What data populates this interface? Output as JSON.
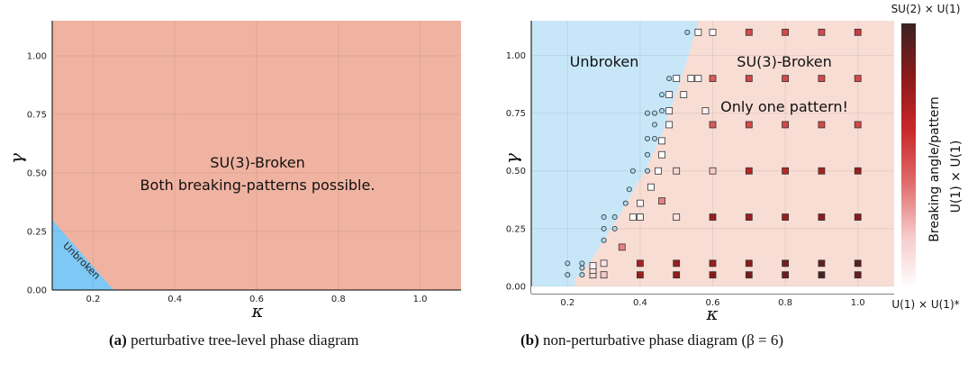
{
  "chart_data": [
    {
      "type": "area",
      "xlabel": "κ",
      "ylabel": "γ",
      "xlim": [
        0.1,
        1.1
      ],
      "ylim": [
        0.0,
        1.15
      ],
      "xticks": [
        "0.2",
        "0.4",
        "0.6",
        "0.8",
        "1.0"
      ],
      "yticks": [
        "0.00",
        "0.25",
        "0.50",
        "0.75",
        "1.00"
      ],
      "grid": true,
      "colors": {
        "broken": "#f0b3a1",
        "unbroken": "#7dc8f5"
      },
      "regions": [
        {
          "label": "Unbroken",
          "boundary_x": [
            0.1,
            0.25
          ],
          "boundary_y": [
            0.3,
            0.0
          ]
        },
        {
          "label": "SU(3)-Broken",
          "label2": "Both breaking-patterns possible."
        }
      ],
      "caption": {
        "letter": "(a)",
        "text": " perturbative tree-level phase diagram"
      }
    },
    {
      "type": "scatter",
      "xlabel": "κ",
      "ylabel": "γ",
      "xlim": [
        0.1,
        1.1
      ],
      "ylim": [
        0.0,
        1.15
      ],
      "xticks": [
        "0.2",
        "0.4",
        "0.6",
        "0.8",
        "1.0"
      ],
      "yticks": [
        "0.00",
        "0.25",
        "0.50",
        "0.75",
        "1.00"
      ],
      "grid": true,
      "colors": {
        "broken": "#f8ddd4",
        "unbroken": "#c7e7f9"
      },
      "boundary": {
        "x": [
          0.22,
          0.26,
          0.3,
          0.34,
          0.38,
          0.42,
          0.46,
          0.5,
          0.53,
          0.56
        ],
        "y": [
          0.03,
          0.1,
          0.2,
          0.3,
          0.41,
          0.52,
          0.66,
          0.84,
          0.98,
          1.15
        ]
      },
      "region_labels": {
        "left": "Unbroken",
        "right": "SU(3)-Broken",
        "note": "Only one pattern!"
      },
      "circles": [
        [
          0.2,
          0.05
        ],
        [
          0.2,
          0.1
        ],
        [
          0.24,
          0.05
        ],
        [
          0.24,
          0.08
        ],
        [
          0.24,
          0.1
        ],
        [
          0.3,
          0.2
        ],
        [
          0.3,
          0.25
        ],
        [
          0.3,
          0.3
        ],
        [
          0.33,
          0.25
        ],
        [
          0.33,
          0.3
        ],
        [
          0.36,
          0.36
        ],
        [
          0.37,
          0.42
        ],
        [
          0.38,
          0.5
        ],
        [
          0.42,
          0.5
        ],
        [
          0.42,
          0.57
        ],
        [
          0.42,
          0.64
        ],
        [
          0.44,
          0.64
        ],
        [
          0.44,
          0.7
        ],
        [
          0.42,
          0.75
        ],
        [
          0.44,
          0.75
        ],
        [
          0.46,
          0.76
        ],
        [
          0.46,
          0.83
        ],
        [
          0.48,
          0.9
        ],
        [
          0.53,
          1.1
        ]
      ],
      "squares": [
        [
          0.27,
          0.05,
          0.15
        ],
        [
          0.27,
          0.07,
          0.1
        ],
        [
          0.27,
          0.09,
          0.05
        ],
        [
          0.3,
          0.05,
          0.2
        ],
        [
          0.3,
          0.1,
          0.1
        ],
        [
          0.38,
          0.3,
          0.0
        ],
        [
          0.4,
          0.3,
          0.05
        ],
        [
          0.35,
          0.17,
          0.35
        ],
        [
          0.4,
          0.36,
          0.0
        ],
        [
          0.43,
          0.43,
          0.0
        ],
        [
          0.45,
          0.5,
          0.0
        ],
        [
          0.46,
          0.57,
          0.0
        ],
        [
          0.46,
          0.63,
          0.0
        ],
        [
          0.48,
          0.7,
          0.0
        ],
        [
          0.48,
          0.76,
          0.0
        ],
        [
          0.48,
          0.83,
          0.0
        ],
        [
          0.5,
          0.9,
          0.0
        ],
        [
          0.52,
          0.83,
          0.0
        ],
        [
          0.54,
          0.9,
          0.0
        ],
        [
          0.56,
          0.9,
          0.0
        ],
        [
          0.56,
          1.1,
          0.0
        ],
        [
          0.6,
          1.1,
          0.0
        ],
        [
          0.58,
          0.76,
          0.05
        ],
        [
          0.46,
          0.37,
          0.35
        ],
        [
          0.5,
          0.5,
          0.15
        ],
        [
          0.6,
          0.5,
          0.2
        ],
        [
          0.7,
          0.5,
          0.65
        ],
        [
          0.8,
          0.5,
          0.65
        ],
        [
          0.9,
          0.5,
          0.7
        ],
        [
          1.0,
          0.5,
          0.75
        ],
        [
          0.5,
          0.3,
          0.1
        ],
        [
          0.6,
          0.3,
          0.75
        ],
        [
          0.7,
          0.3,
          0.75
        ],
        [
          0.8,
          0.3,
          0.75
        ],
        [
          0.9,
          0.3,
          0.78
        ],
        [
          1.0,
          0.3,
          0.8
        ],
        [
          0.6,
          0.7,
          0.45
        ],
        [
          0.7,
          0.7,
          0.5
        ],
        [
          0.8,
          0.7,
          0.5
        ],
        [
          0.9,
          0.7,
          0.5
        ],
        [
          1.0,
          0.7,
          0.5
        ],
        [
          0.6,
          0.9,
          0.45
        ],
        [
          0.7,
          0.9,
          0.5
        ],
        [
          0.8,
          0.9,
          0.5
        ],
        [
          0.9,
          0.9,
          0.5
        ],
        [
          1.0,
          0.9,
          0.5
        ],
        [
          0.7,
          1.1,
          0.5
        ],
        [
          0.8,
          1.1,
          0.5
        ],
        [
          0.9,
          1.1,
          0.5
        ],
        [
          1.0,
          1.1,
          0.55
        ],
        [
          0.4,
          0.1,
          0.7
        ],
        [
          0.5,
          0.1,
          0.75
        ],
        [
          0.6,
          0.1,
          0.75
        ],
        [
          0.7,
          0.1,
          0.8
        ],
        [
          0.8,
          0.1,
          0.85
        ],
        [
          0.9,
          0.1,
          0.9
        ],
        [
          1.0,
          0.1,
          0.92
        ],
        [
          0.4,
          0.05,
          0.75
        ],
        [
          0.5,
          0.05,
          0.78
        ],
        [
          0.6,
          0.05,
          0.8
        ],
        [
          0.7,
          0.05,
          0.85
        ],
        [
          0.8,
          0.05,
          0.88
        ],
        [
          0.9,
          0.05,
          0.97
        ],
        [
          1.0,
          0.05,
          0.9
        ]
      ],
      "colorbar": {
        "label": "Breaking angle/pattern",
        "right_label": "U(1) × U(1)",
        "top_label": "SU(2) × U(1)",
        "bottom_label": "U(1) × U(1)*",
        "colors": [
          "#ffffff",
          "#f6c9c9",
          "#e06a6a",
          "#c8282a",
          "#8b1a1a",
          "#3a2323"
        ]
      },
      "caption": {
        "letter": "(b)",
        "text": " non-perturbative phase diagram (β = 6)"
      }
    }
  ]
}
